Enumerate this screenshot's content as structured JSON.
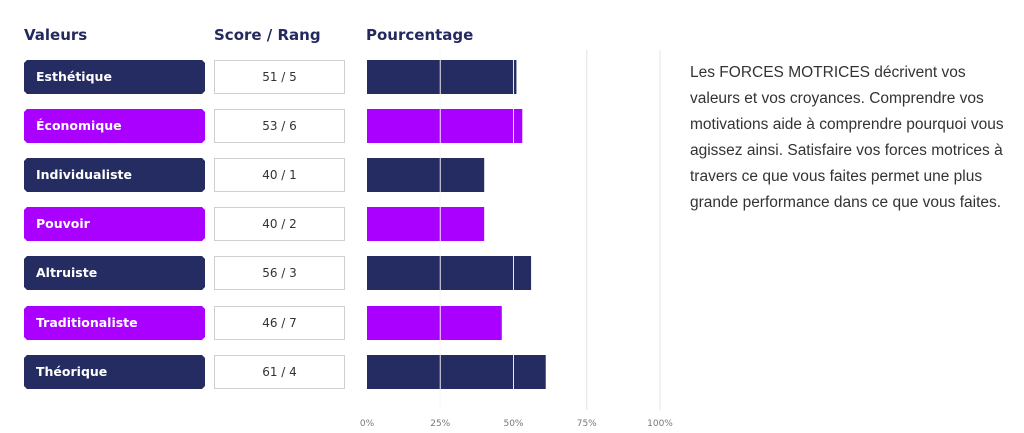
{
  "headers": {
    "valeurs": "Valeurs",
    "score_rang": "Score / Rang",
    "pourcentage": "Pourcentage"
  },
  "colors": {
    "navy": "#252c61",
    "purple": "#aa00ff"
  },
  "description": "Les FORCES MOTRICES décrivent vos valeurs et vos croyances. Comprendre vos motivations aide à comprendre pourquoi vous agissez ainsi. Satisfaire vos forces motrices à travers ce que vous faites permet une plus grande performance dans ce que vous faites.",
  "chart_data": {
    "type": "bar",
    "orientation": "horizontal",
    "categories": [
      "Esthétique",
      "Économique",
      "Individualiste",
      "Pouvoir",
      "Altruiste",
      "Traditionaliste",
      "Théorique"
    ],
    "scores": [
      "51 / 5",
      "53 / 6",
      "40 / 1",
      "40 / 2",
      "56 / 3",
      "46 / 7",
      "61 / 4"
    ],
    "values": [
      51,
      53,
      40,
      40,
      56,
      46,
      61
    ],
    "bar_colors": [
      "navy",
      "purple",
      "navy",
      "purple",
      "navy",
      "purple",
      "navy"
    ],
    "xlim": [
      0,
      100
    ],
    "ticks": [
      0,
      25,
      50,
      75,
      100
    ],
    "tick_labels": [
      "0%",
      "25%",
      "50%",
      "75%",
      "100%"
    ],
    "grid": true
  }
}
